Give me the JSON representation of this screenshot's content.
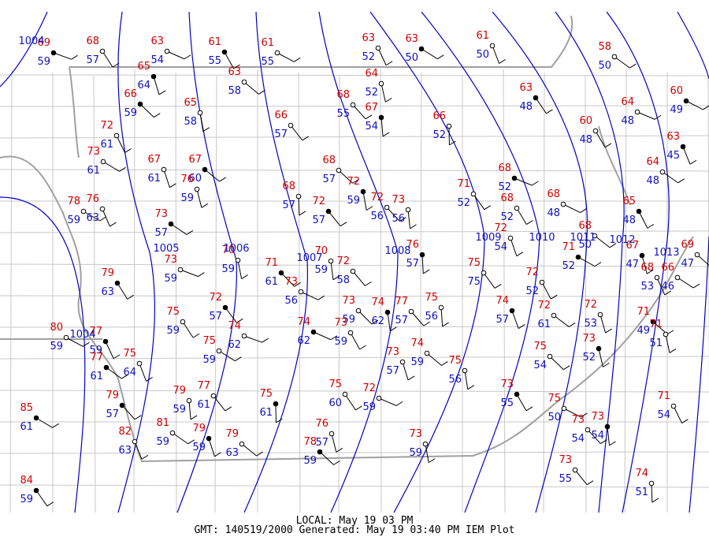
{
  "isobars": [
    "1004",
    "1004",
    "1005",
    "1006",
    "1007",
    "1008",
    "1009",
    "1010",
    "1011",
    "1012",
    "1013"
  ],
  "stations": [
    [
      69,
      59
    ],
    [
      68,
      57
    ],
    [
      63,
      54
    ],
    [
      61,
      55
    ],
    [
      61,
      55
    ],
    [
      63,
      52
    ],
    [
      63,
      50
    ],
    [
      61,
      50
    ],
    [
      58,
      50
    ],
    [
      65,
      64
    ],
    [
      63,
      58
    ],
    [
      64,
      52
    ],
    [
      66,
      59
    ],
    [
      65,
      58
    ],
    [
      68,
      55
    ],
    [
      67,
      54
    ],
    [
      66,
      57
    ],
    [
      66,
      52
    ],
    [
      63,
      48
    ],
    [
      64,
      48
    ],
    [
      60,
      48
    ],
    [
      60,
      49
    ],
    [
      72,
      61
    ],
    [
      73,
      61
    ],
    [
      63,
      45
    ],
    [
      64,
      48
    ],
    [
      67,
      61
    ],
    [
      67,
      60
    ],
    [
      76,
      59
    ],
    [
      68,
      57
    ],
    [
      72,
      59
    ],
    [
      72,
      56
    ],
    [
      73,
      56
    ],
    [
      72,
      57
    ],
    [
      68,
      57
    ],
    [
      71,
      52
    ],
    [
      68,
      52
    ],
    [
      68,
      52
    ],
    [
      68,
      48
    ],
    [
      65,
      48
    ],
    [
      78,
      59
    ],
    [
      76,
      63
    ],
    [
      73,
      57
    ],
    [
      72,
      54
    ],
    [
      68,
      50
    ],
    [
      67,
      47
    ],
    [
      69,
      47
    ],
    [
      70,
      59
    ],
    [
      71,
      61
    ],
    [
      70,
      59
    ],
    [
      72,
      58
    ],
    [
      76,
      57
    ],
    [
      75,
      75
    ],
    [
      73,
      59
    ],
    [
      79,
      63
    ],
    [
      73,
      56
    ],
    [
      72,
      52
    ],
    [
      71,
      52
    ],
    [
      68,
      53
    ],
    [
      66,
      46
    ],
    [
      74,
      57
    ],
    [
      72,
      61
    ],
    [
      72,
      53
    ],
    [
      71,
      49
    ],
    [
      71,
      51
    ],
    [
      73,
      59
    ],
    [
      74,
      62
    ],
    [
      77,
      57
    ],
    [
      75,
      56
    ],
    [
      72,
      57
    ],
    [
      74,
      62
    ],
    [
      75,
      59
    ],
    [
      74,
      62
    ],
    [
      73,
      59
    ],
    [
      80,
      59
    ],
    [
      77,
      59
    ],
    [
      75,
      59
    ],
    [
      75,
      64
    ],
    [
      77,
      61
    ],
    [
      73,
      57
    ],
    [
      74,
      59
    ],
    [
      73,
      52
    ],
    [
      75,
      54
    ],
    [
      75,
      56
    ],
    [
      79,
      57
    ],
    [
      79,
      59
    ],
    [
      77,
      61
    ],
    [
      75,
      61
    ],
    [
      75,
      60
    ],
    [
      72,
      59
    ],
    [
      73,
      55
    ],
    [
      75,
      50
    ],
    [
      71,
      54
    ],
    [
      85,
      61
    ],
    [
      82,
      63
    ],
    [
      81,
      59
    ],
    [
      79,
      59
    ],
    [
      79,
      63
    ],
    [
      76,
      57
    ],
    [
      78,
      59
    ],
    [
      73,
      59
    ],
    [
      73,
      54
    ],
    [
      73,
      54
    ],
    [
      73,
      55
    ],
    [
      74,
      51
    ],
    [
      84,
      59
    ]
  ],
  "footer": {
    "local": "LOCAL: May 19 03 PM",
    "generated": "GMT: 140519/2000 Generated: May 19 03:40 PM IEM Plot"
  }
}
